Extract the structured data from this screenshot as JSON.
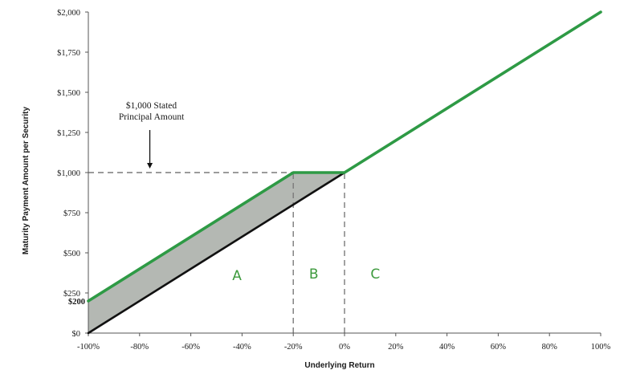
{
  "chart_data": {
    "type": "line",
    "xlabel": "Underlying Return",
    "ylabel": "Maturity Payment Amount per Security",
    "xlim": [
      -100,
      100
    ],
    "ylim": [
      0,
      2000
    ],
    "x_ticks": [
      -100,
      -80,
      -60,
      -40,
      -20,
      0,
      20,
      40,
      60,
      80,
      100
    ],
    "x_tick_labels": [
      "-100%",
      "-80%",
      "-60%",
      "-40%",
      "-20%",
      "0%",
      "20%",
      "40%",
      "60%",
      "80%",
      "100%"
    ],
    "y_ticks": [
      0,
      250,
      500,
      750,
      1000,
      1250,
      1500,
      1750,
      2000
    ],
    "y_tick_labels": [
      "$0",
      "$250",
      "$500",
      "$750",
      "$1,000",
      "$1,250",
      "$1,500",
      "$1,750",
      "$2,000"
    ],
    "extra_y_label": {
      "value": 200,
      "text": "$200"
    },
    "series": [
      {
        "color": "#2e9a45",
        "points": [
          [
            -100,
            200
          ],
          [
            -20,
            1000
          ],
          [
            0,
            1000
          ],
          [
            100,
            2000
          ]
        ]
      },
      {
        "color": "#111111",
        "points": [
          [
            -100,
            0
          ],
          [
            0,
            1000
          ]
        ]
      }
    ],
    "shaded_area": {
      "color": "#b4b8b3",
      "upper": [
        [
          -100,
          200
        ],
        [
          -20,
          1000
        ],
        [
          0,
          1000
        ]
      ],
      "lower": [
        [
          -100,
          0
        ],
        [
          0,
          1000
        ]
      ]
    },
    "reference_lines": {
      "horizontal_y": 1000,
      "horizontal_x_range": [
        -100,
        -20
      ],
      "vertical_x": [
        -20,
        0
      ],
      "vertical_y_range": [
        0,
        1000
      ],
      "color": "#7a7a7a"
    },
    "annotation": {
      "lines": [
        "$1,000 Stated",
        "Principal Amount"
      ],
      "arrow_x": -76,
      "arrow_to_y": 1000
    },
    "regions": [
      {
        "label": "A",
        "x": -42,
        "y": 330,
        "color": "#3d9a3d"
      },
      {
        "label": "B",
        "x": -12,
        "y": 340,
        "color": "#3d9a3d"
      },
      {
        "label": "C",
        "x": 12,
        "y": 340,
        "color": "#3d9a3d"
      }
    ],
    "grid": false
  }
}
